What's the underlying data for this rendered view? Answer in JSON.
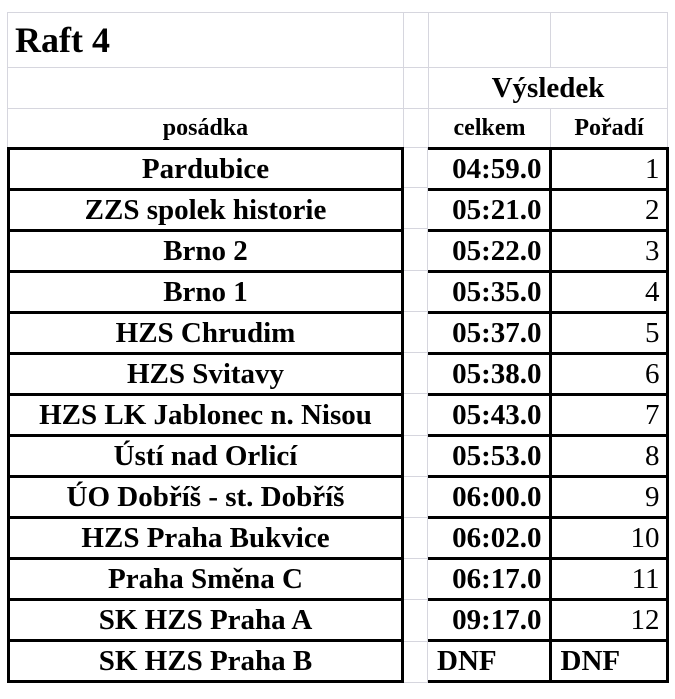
{
  "title": "Raft 4",
  "results_header": "Výsledek",
  "columns": {
    "crew": "posádka",
    "total": "celkem",
    "rank": "Pořadí"
  },
  "rows": [
    {
      "crew": "Pardubice",
      "total": "04:59.0",
      "rank": "1"
    },
    {
      "crew": "ZZS spolek historie",
      "total": "05:21.0",
      "rank": "2"
    },
    {
      "crew": "Brno 2",
      "total": "05:22.0",
      "rank": "3"
    },
    {
      "crew": "Brno 1",
      "total": "05:35.0",
      "rank": "4"
    },
    {
      "crew": "HZS Chrudim",
      "total": "05:37.0",
      "rank": "5"
    },
    {
      "crew": "HZS Svitavy",
      "total": "05:38.0",
      "rank": "6"
    },
    {
      "crew": "HZS LK Jablonec n. Nisou",
      "total": "05:43.0",
      "rank": "7"
    },
    {
      "crew": "Ústí nad Orlicí",
      "total": "05:53.0",
      "rank": "8"
    },
    {
      "crew": "ÚO Dobříš - st. Dobříš",
      "total": "06:00.0",
      "rank": "9"
    },
    {
      "crew": "HZS Praha Bukvice",
      "total": "06:02.0",
      "rank": "10"
    },
    {
      "crew": "Praha Směna C",
      "total": "06:17.0",
      "rank": "11"
    },
    {
      "crew": "SK HZS Praha A",
      "total": "09:17.0",
      "rank": "12"
    },
    {
      "crew": "SK HZS Praha B",
      "total": "DNF",
      "rank": "DNF"
    }
  ],
  "colors": {
    "table_border": "#000000",
    "gridline": "#d6d6de",
    "text": "#000000",
    "background": "#ffffff"
  }
}
